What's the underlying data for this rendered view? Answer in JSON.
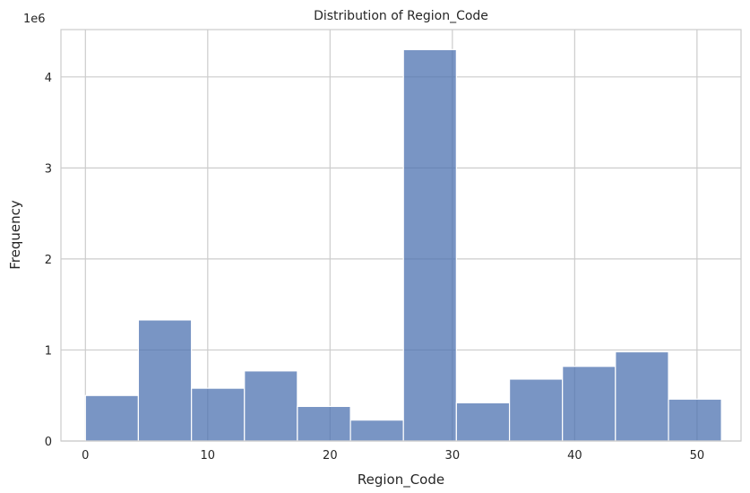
{
  "chart_data": {
    "type": "bar",
    "title": "Distribution of Region_Code",
    "xlabel": "Region_Code",
    "ylabel": "Frequency",
    "y_scale_label": "1e6",
    "xlim": [
      -2,
      53.6
    ],
    "ylim": [
      0,
      4.52
    ],
    "xticks": [
      0,
      10,
      20,
      30,
      40,
      50
    ],
    "yticks": [
      0,
      1,
      2,
      3,
      4
    ],
    "grid": true,
    "color": "#4c72b0",
    "bin_edges": [
      0,
      4.33,
      8.67,
      13,
      17.33,
      21.67,
      26,
      30.33,
      34.67,
      39,
      43.33,
      47.67,
      52
    ],
    "values": [
      0.5,
      1.33,
      0.58,
      0.77,
      0.38,
      0.23,
      4.3,
      0.42,
      0.68,
      0.82,
      0.98,
      0.46
    ]
  }
}
